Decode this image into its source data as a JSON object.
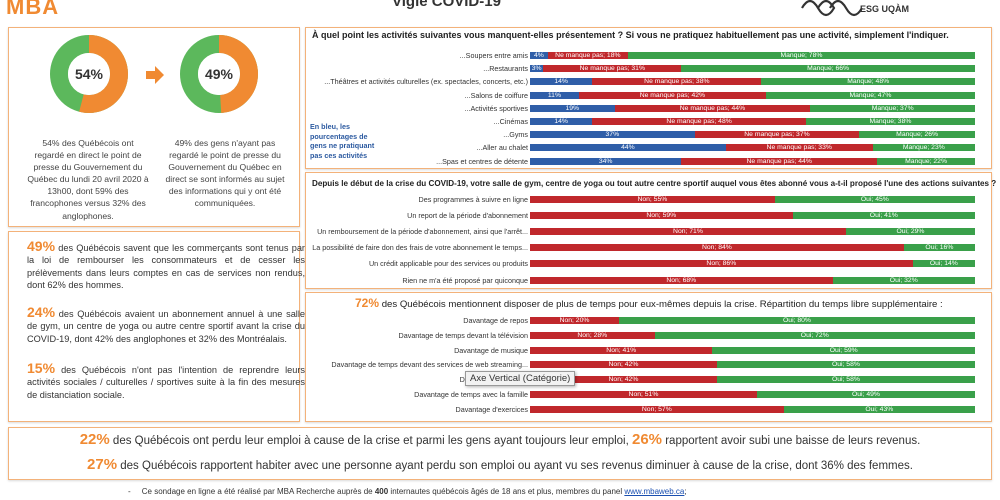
{
  "header": {
    "logo": "MBA",
    "title": "Vigie COVID-19",
    "esg_logo": "ESG UQÀM"
  },
  "rings": [
    {
      "value": 54,
      "label": "54%",
      "caption": "54% des Québécois ont regardé en direct le point de presse du Gouvernement du Québec du lundi 20 avril 2020 à 13h00, dont 59% des francophones versus 32% des anglophones."
    },
    {
      "value": 49,
      "label": "49%",
      "caption": "49% des gens n'ayant pas regardé le point de presse du Gouvernement du Québec en direct se sont informés au sujet des informations qui y ont été communiquées."
    }
  ],
  "left_stats": [
    {
      "pct": "49%",
      "text": " des Québécois savent que les commerçants sont tenus par la loi de rembourser les consommateurs et de cesser les prélèvements dans leurs comptes en cas de services non rendus, dont 62% des hommes."
    },
    {
      "pct": "24%",
      "text": " des Québécois avaient un abonnement annuel à une salle de gym, un centre de yoga ou autre centre sportif avant la crise du COVID-19, dont 42% des anglophones et 32% des Montréalais."
    },
    {
      "pct": "15%",
      "text": " des Québécois n'ont pas l'intention de reprendre leurs activités sociales / culturelles / sportives suite à la fin des mesures de distanciation sociale."
    }
  ],
  "note_blue": "En bleu, les pourcentages de gens ne pratiquant pas ces activités",
  "tooltip": "Axe Vertical (Catégorie)",
  "colors": {
    "blue": "#2f5ea8",
    "red": "#c0282c",
    "green": "#3aa04a",
    "orange": "#f08a32",
    "ring_green": "#5cb85c"
  },
  "chart_data": [
    {
      "type": "bar",
      "stacked": true,
      "orientation": "horizontal",
      "title": "À quel point les activités suivantes vous manquent-elles présentement ? Si vous ne pratiquez habituellement pas une activité, simplement l'indiquer.",
      "categories": [
        "...Soupers entre amis",
        "...Restaurants",
        "...Théâtres et activités culturelles (ex. spectacles, concerts, etc.)",
        "...Salons de coiffure",
        "...Activités sportives",
        "...Cinémas",
        "...Gyms",
        "...Aller au chalet",
        "...Spas et centres de détente"
      ],
      "series": [
        {
          "values": [
            4,
            3,
            14,
            11,
            19,
            14,
            37,
            44,
            34
          ],
          "labels": [
            "4%",
            "3%",
            "14%",
            "11%",
            "19%",
            "14%",
            "37%",
            "44%",
            "34%"
          ],
          "color": "#2f5ea8"
        },
        {
          "values": [
            18,
            31,
            38,
            42,
            44,
            48,
            37,
            33,
            44
          ],
          "labels": [
            "Ne manque pas; 18%",
            "Ne manque pas; 31%",
            "Ne manque pas; 38%",
            "Ne manque pas; 42%",
            "Ne manque pas; 44%",
            "Ne manque pas; 48%",
            "Ne manque pas; 37%",
            "Ne manque pas; 33%",
            "Ne manque pas; 44%"
          ],
          "color": "#c0282c"
        },
        {
          "values": [
            78,
            66,
            48,
            47,
            37,
            38,
            26,
            23,
            22
          ],
          "labels": [
            "Manque; 78%",
            "Manque; 66%",
            "Manque; 48%",
            "Manque; 47%",
            "Manque; 37%",
            "Manque; 38%",
            "Manque; 26%",
            "Manque; 23%",
            "Manque; 22%"
          ],
          "color": "#3aa04a"
        }
      ]
    },
    {
      "type": "bar",
      "stacked": true,
      "orientation": "horizontal",
      "title": "Depuis le début de la crise du COVID-19, votre salle de gym, centre de yoga ou tout autre centre sportif auquel vous êtes abonné vous a-t-il proposé l'une des actions suivantes ?",
      "categories": [
        "Des programmes à suivre en ligne",
        "Un report de la période d'abonnement",
        "Un remboursement de la période d'abonnement, ainsi que l'arrêt...",
        "La possibilité de faire don des frais de votre abonnement le temps...",
        "Un crédit applicable pour des services ou produits",
        "Rien ne m'a été proposé par quiconque"
      ],
      "series": [
        {
          "values": [
            55,
            59,
            71,
            84,
            86,
            68
          ],
          "labels": [
            "Non; 55%",
            "Non; 59%",
            "Non; 71%",
            "Non; 84%",
            "Non; 86%",
            "Non; 68%"
          ],
          "color": "#c0282c"
        },
        {
          "values": [
            45,
            41,
            29,
            16,
            14,
            32
          ],
          "labels": [
            "Oui; 45%",
            "Oui; 41%",
            "Oui; 29%",
            "Oui; 16%",
            "Oui; 14%",
            "Oui; 32%"
          ],
          "color": "#3aa04a"
        }
      ]
    },
    {
      "type": "bar",
      "stacked": true,
      "orientation": "horizontal",
      "title_pct": "72%",
      "title": " des Québécois mentionnent disposer de plus de temps pour eux-mêmes depuis la crise. Répartition du temps libre supplémentaire :",
      "categories": [
        "Davantage de repos",
        "Davantage de temps devant la télévision",
        "Davantage de musique",
        "Davantage de temps devant des services de web streaming...",
        "Davantage de lecture",
        "Davantage de temps avec la famille",
        "Davantage d'exercices"
      ],
      "series": [
        {
          "values": [
            20,
            28,
            41,
            42,
            42,
            51,
            57
          ],
          "labels": [
            "Non; 20%",
            "Non; 28%",
            "Non; 41%",
            "Non; 42%",
            "Non; 42%",
            "Non; 51%",
            "Non; 57%"
          ],
          "color": "#c0282c"
        },
        {
          "values": [
            80,
            72,
            59,
            58,
            58,
            49,
            43
          ],
          "labels": [
            "Oui; 80%",
            "Oui; 72%",
            "Oui; 59%",
            "Oui; 58%",
            "Oui; 58%",
            "Oui; 49%",
            "Oui; 43%"
          ],
          "color": "#3aa04a"
        }
      ]
    }
  ],
  "bottom": [
    {
      "p1": "22%",
      "t1": " des Québécois ont perdu leur emploi à cause de la crise et parmi les gens ayant toujours leur emploi, ",
      "p2": "26%",
      "t2": " rapportent avoir subi une baisse de leurs revenus."
    },
    {
      "p1": "27%",
      "t1": " des Québécois rapportent habiter avec une personne ayant perdu son emploi ou ayant vu ses revenus diminuer à cause de la crise, dont 36% des femmes.",
      "p2": "",
      "t2": ""
    }
  ],
  "footnote": {
    "before": "Ce sondage en ligne a été réalisé par MBA Recherche auprès de ",
    "count": "400",
    "middle": " internautes québécois âgés de 18 ans et plus, membres du panel ",
    "link": "www.mbaweb.ca",
    "after": ";"
  }
}
